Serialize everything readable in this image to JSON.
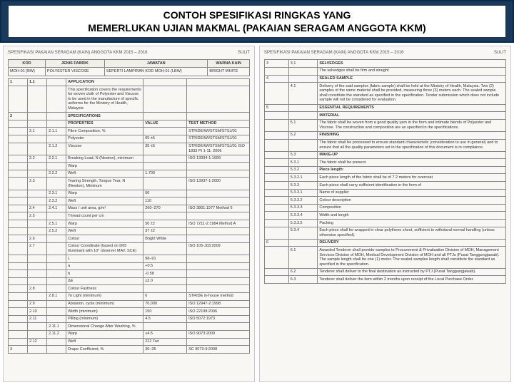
{
  "title": {
    "line1": "CONTOH SPESIFIKASI RINGKAS YANG",
    "line2": "MEMERLUKAN UJIAN MAKMAL (PAKAIAN SERAGAM ANGGOTA KKM)"
  },
  "page_left": {
    "header_left": "SPESIFIKASI PAKAIAN SERAGAM (KAIN) ANGGOTA KKM 2015 – 2016",
    "header_right": "SULIT",
    "info": {
      "kod_h": "KOD",
      "jenis_h": "JENIS FABRIK",
      "jawatan_h": "JAWATAN",
      "warna_h": "WARNA KAIN",
      "kod": "MOH-01 (BW)",
      "jenis": "POLYESTER VISCOSE",
      "jawatan": "SEPERTI LAMPIRAN KOD MOH-01 (LBW)",
      "warna": "BRIGHT WHITE"
    },
    "rows": [
      {
        "n": "1",
        "s": "1.1",
        "s2": "",
        "p": "APPLICATION",
        "v": "",
        "t": "",
        "bold": true
      },
      {
        "n": "",
        "s": "",
        "s2": "",
        "p": "This specification covers the requirements for woven cloth of Polyester and Viscose to be used in the manufacture of specific uniforms for the Ministry of Health, Malaysia",
        "v": "",
        "t": ""
      },
      {
        "n": "2",
        "s": "",
        "s2": "",
        "p": "SPECIFICATIONS",
        "v": "",
        "t": "",
        "bold": true
      },
      {
        "n": "",
        "s": "",
        "s2": "",
        "p": "PROPERTIES",
        "v": "VALUE",
        "t": "TEST METHOD",
        "bold": true
      },
      {
        "n": "",
        "s": "2.1",
        "s2": "2.1.1",
        "p": "Fibre Composition, %",
        "v": "",
        "t": "STRIDE/WI/STSM/STSJ/01"
      },
      {
        "n": "",
        "s": "",
        "s2": "",
        "p": "Polyester",
        "v": "65 ±5",
        "t": "STRIDE/WI/STSM/STSJ/01"
      },
      {
        "n": "",
        "s": "",
        "s2": "2.1.2",
        "p": "Viscose",
        "v": "35 ±5",
        "t": "STRIDE/WI/STSM/STSJ/01 ISO 1833 Pt 1-11: 2006"
      },
      {
        "n": "",
        "s": "2.2",
        "s2": "2.2.1",
        "p": "Breaking Load, N (Newton), minimum",
        "v": "",
        "t": "ISO 13934-1:1999"
      },
      {
        "n": "",
        "s": "",
        "s2": "",
        "p": "Warp",
        "v": "",
        "t": ""
      },
      {
        "n": "",
        "s": "",
        "s2": "2.2.2",
        "p": "Weft",
        "v": "1.700",
        "t": ""
      },
      {
        "n": "",
        "s": "2.3",
        "s2": "",
        "p": "Tearing Strength, Tongue Tear, N (Newton), Minimum",
        "v": "",
        "t": "ISO 13937-1:2000"
      },
      {
        "n": "",
        "s": "",
        "s2": "2.3.1",
        "p": "Warp",
        "v": "50",
        "t": ""
      },
      {
        "n": "",
        "s": "",
        "s2": "2.3.2",
        "p": "Weft",
        "v": "110",
        "t": ""
      },
      {
        "n": "",
        "s": "2.4",
        "s2": "2.4.1",
        "p": "Mass / unit area, g/m²",
        "v": "260–270",
        "t": "ISO 3801:1977 Method 6"
      },
      {
        "n": "",
        "s": "2.5",
        "s2": "",
        "p": "Thread count per cm",
        "v": "",
        "t": ""
      },
      {
        "n": "",
        "s": "",
        "s2": "2.5.1",
        "p": "Warp",
        "v": "50 ±2",
        "t": "ISO 7211-2:1984 Method A"
      },
      {
        "n": "",
        "s": "",
        "s2": "2.5.2",
        "p": "Weft",
        "v": "37 ±2",
        "t": ""
      },
      {
        "n": "",
        "s": "2.6",
        "s2": "",
        "p": "Colour",
        "v": "Bright White",
        "t": ""
      },
      {
        "n": "",
        "s": "2.7",
        "s2": "",
        "p": "Colour Coordinate (based on D65 illuminant with 10° observer MAV, SCE)",
        "v": "",
        "t": "ISO 105-J03:2009"
      },
      {
        "n": "",
        "s": "",
        "s2": "",
        "p": "L",
        "v": "98–91",
        "t": ""
      },
      {
        "n": "",
        "s": "",
        "s2": "",
        "p": "a",
        "v": "+0.5",
        "t": ""
      },
      {
        "n": "",
        "s": "",
        "s2": "",
        "p": "b",
        "v": "-0.58",
        "t": ""
      },
      {
        "n": "",
        "s": "",
        "s2": "",
        "p": "ΔE",
        "v": "≤2.0",
        "t": ""
      },
      {
        "n": "",
        "s": "2.8",
        "s2": "",
        "p": "Colour Fastness",
        "v": "",
        "t": ""
      },
      {
        "n": "",
        "s": "",
        "s2": "2.8.1",
        "p": "To Light (minimum)",
        "v": "6",
        "t": "STRIDE in-house method"
      },
      {
        "n": "",
        "s": "2.9",
        "s2": "",
        "p": "Abrasion, cycle (minimum)",
        "v": "70,000",
        "t": "ISO 12947-2:1998"
      },
      {
        "n": "",
        "s": "2.10",
        "s2": "",
        "p": "Width (minimum)",
        "v": "150",
        "t": "ISO 22198:2006"
      },
      {
        "n": "",
        "s": "2.11",
        "s2": "",
        "p": "Pilling (minimum)",
        "v": "4.5",
        "t": "ISO 5072:1973"
      },
      {
        "n": "",
        "s": "",
        "s2": "2.11.1",
        "p": "Dimensional Change After Washing, %",
        "v": "",
        "t": ""
      },
      {
        "n": "",
        "s": "",
        "s2": "2.11.2",
        "p": "Warp",
        "v": "≤4.5",
        "t": "ISO 9073:2009"
      },
      {
        "n": "",
        "s": "2.12",
        "s2": "",
        "p": "Weft",
        "v": "222 Twt",
        "t": ""
      },
      {
        "n": "3",
        "s": "",
        "s2": "",
        "p": "Drape Coefficient, %",
        "v": "30–35",
        "t": "SC 9073-9:2008"
      }
    ]
  },
  "page_right": {
    "header_left": "SPESIFIKASI PAKAIAN SERAGAM (KAIN) ANGGOTA KKM 2015 – 2016",
    "header_right": "SULIT",
    "rows": [
      {
        "n": "3",
        "s": "3.1",
        "d": "SELVEDGES",
        "bold": true
      },
      {
        "n": "",
        "s": "",
        "d": "The selvedges shall be firm and straight"
      },
      {
        "n": "4",
        "s": "",
        "d": "SEALED SAMPLE",
        "bold": true
      },
      {
        "n": "",
        "s": "4.1",
        "d": "Delivery of the said samples (fabric sample) shall be held at the Ministry of Health, Malaysia. Two (2) samples of the same material shall be provided, measuring three (3) meters each. The sealed sample shall constitute the standard as specified in the specification. Tender submission which does not include sample will not be considered for evaluation.",
        "bold": false
      },
      {
        "n": "5",
        "s": "",
        "d": "ESSENTIAL REQUIREMENTS",
        "bold": true
      },
      {
        "n": "",
        "s": "",
        "d": "MATERIAL",
        "bold": true
      },
      {
        "n": "",
        "s": "5.1",
        "d": "The fabric shall be woven from a good quality yarn in the form and intimate blends of Polyester and Viscose. The construction and composition are as specified in the specifications."
      },
      {
        "n": "",
        "s": "5.2",
        "d": "FINISHING",
        "bold": true
      },
      {
        "n": "",
        "s": "",
        "d": "The fabric shall be processed to ensure standard characteristic (consideration to use in general) and to ensure that all the quality parameters set in the specification of this document is in compliance."
      },
      {
        "n": "",
        "s": "5.3",
        "d": "MAKE-UP",
        "bold": true
      },
      {
        "n": "",
        "s": "5.3.1",
        "d": "The fabric shall be present"
      },
      {
        "n": "",
        "s": "5.3.2",
        "d": "Piece length:",
        "bold": true
      },
      {
        "n": "",
        "s": "5.3.2.1",
        "d": "Each piece length of the fabric shall be of 7.2 meters for overcoat"
      },
      {
        "n": "",
        "s": "5.3.3",
        "d": "Each piece shall carry sufficient identification in the form of"
      },
      {
        "n": "",
        "s": "5.3.3.1",
        "d": "Name of supplier"
      },
      {
        "n": "",
        "s": "5.3.3.2",
        "d": "Colour description"
      },
      {
        "n": "",
        "s": "5.3.3.3",
        "d": "Composition"
      },
      {
        "n": "",
        "s": "5.3.3.4",
        "d": "Width and length"
      },
      {
        "n": "",
        "s": "5.3.3.5",
        "d": "Packing"
      },
      {
        "n": "",
        "s": "5.3.4",
        "d": "Each piece shall be wrapped in clear polythene sheet, sufficient to withstand normal handling (unless otherwise specified)."
      },
      {
        "n": "6",
        "s": "",
        "d": "DELIVERY",
        "bold": true
      },
      {
        "n": "",
        "s": "6.1",
        "d": "Awarded Tenderer shall provide samples to Procurement & Privatisation Division of MOH, Management Services Division of MOH, Medical Development Division of MOH and all PTJs (Pusat Tanggungjawab). The sample length shall be one (1) meter. The sealed samples length shall constitute the standard as specified in the specification."
      },
      {
        "n": "",
        "s": "6.2",
        "d": "Tenderer shall deliver to the final destination as instructed by PTJ (Pusat Tanggungjawab)."
      },
      {
        "n": "",
        "s": "6.3",
        "d": "Tenderer shall deliver the item within 2 months upon receipt of the Local Purchase Order."
      }
    ]
  }
}
